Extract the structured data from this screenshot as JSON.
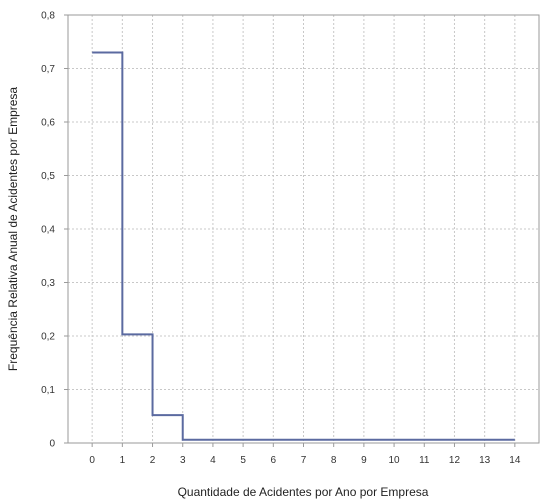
{
  "chart_data": {
    "type": "line",
    "step": "post",
    "title": "",
    "xlabel": "Quantidade de Acidentes por Ano por Empresa",
    "ylabel": "Frequência Relativa Anual de Acidentes por Empresa",
    "xlim": [
      -0.8,
      14.8
    ],
    "ylim": [
      0,
      0.8
    ],
    "grid": true,
    "x_ticks": [
      "0",
      "1",
      "2",
      "3",
      "4",
      "5",
      "6",
      "7",
      "8",
      "9",
      "10",
      "11",
      "12",
      "13",
      "14"
    ],
    "y_ticks": [
      "0",
      "0,1",
      "0,2",
      "0,3",
      "0,4",
      "0,5",
      "0,6",
      "0,7",
      "0,8"
    ],
    "series": [
      {
        "x": [
          0,
          1,
          2,
          3,
          14
        ],
        "y": [
          0.73,
          0.203,
          0.052,
          0.006,
          0.006
        ]
      }
    ],
    "colors": {
      "line": "#5b6aa0",
      "grid": "#c8c8c8",
      "frame": "#9a9a9a"
    }
  }
}
